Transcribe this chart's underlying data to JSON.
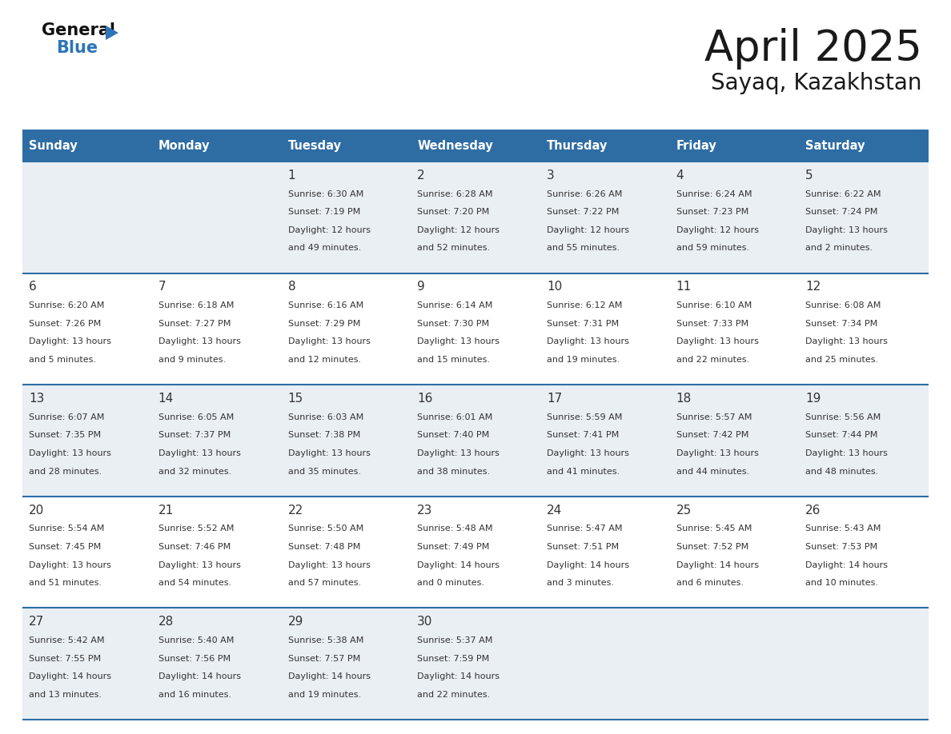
{
  "title": "April 2025",
  "subtitle": "Sayaq, Kazakhstan",
  "header_bg_color": "#2E6DA4",
  "header_text_color": "#FFFFFF",
  "weekdays": [
    "Sunday",
    "Monday",
    "Tuesday",
    "Wednesday",
    "Thursday",
    "Friday",
    "Saturday"
  ],
  "cell_bg_even": "#EAEFF4",
  "cell_bg_odd": "#FFFFFF",
  "row_line_color": "#2E6DA4",
  "text_color": "#333333",
  "title_color": "#1a1a1a",
  "days": [
    {
      "day": null,
      "col": 0,
      "row": 0,
      "sunrise": null,
      "sunset": null,
      "daylight": null
    },
    {
      "day": null,
      "col": 1,
      "row": 0,
      "sunrise": null,
      "sunset": null,
      "daylight": null
    },
    {
      "day": 1,
      "col": 2,
      "row": 0,
      "sunrise": "6:30 AM",
      "sunset": "7:19 PM",
      "daylight": "12 hours and 49 minutes."
    },
    {
      "day": 2,
      "col": 3,
      "row": 0,
      "sunrise": "6:28 AM",
      "sunset": "7:20 PM",
      "daylight": "12 hours and 52 minutes."
    },
    {
      "day": 3,
      "col": 4,
      "row": 0,
      "sunrise": "6:26 AM",
      "sunset": "7:22 PM",
      "daylight": "12 hours and 55 minutes."
    },
    {
      "day": 4,
      "col": 5,
      "row": 0,
      "sunrise": "6:24 AM",
      "sunset": "7:23 PM",
      "daylight": "12 hours and 59 minutes."
    },
    {
      "day": 5,
      "col": 6,
      "row": 0,
      "sunrise": "6:22 AM",
      "sunset": "7:24 PM",
      "daylight": "13 hours and 2 minutes."
    },
    {
      "day": 6,
      "col": 0,
      "row": 1,
      "sunrise": "6:20 AM",
      "sunset": "7:26 PM",
      "daylight": "13 hours and 5 minutes."
    },
    {
      "day": 7,
      "col": 1,
      "row": 1,
      "sunrise": "6:18 AM",
      "sunset": "7:27 PM",
      "daylight": "13 hours and 9 minutes."
    },
    {
      "day": 8,
      "col": 2,
      "row": 1,
      "sunrise": "6:16 AM",
      "sunset": "7:29 PM",
      "daylight": "13 hours and 12 minutes."
    },
    {
      "day": 9,
      "col": 3,
      "row": 1,
      "sunrise": "6:14 AM",
      "sunset": "7:30 PM",
      "daylight": "13 hours and 15 minutes."
    },
    {
      "day": 10,
      "col": 4,
      "row": 1,
      "sunrise": "6:12 AM",
      "sunset": "7:31 PM",
      "daylight": "13 hours and 19 minutes."
    },
    {
      "day": 11,
      "col": 5,
      "row": 1,
      "sunrise": "6:10 AM",
      "sunset": "7:33 PM",
      "daylight": "13 hours and 22 minutes."
    },
    {
      "day": 12,
      "col": 6,
      "row": 1,
      "sunrise": "6:08 AM",
      "sunset": "7:34 PM",
      "daylight": "13 hours and 25 minutes."
    },
    {
      "day": 13,
      "col": 0,
      "row": 2,
      "sunrise": "6:07 AM",
      "sunset": "7:35 PM",
      "daylight": "13 hours and 28 minutes."
    },
    {
      "day": 14,
      "col": 1,
      "row": 2,
      "sunrise": "6:05 AM",
      "sunset": "7:37 PM",
      "daylight": "13 hours and 32 minutes."
    },
    {
      "day": 15,
      "col": 2,
      "row": 2,
      "sunrise": "6:03 AM",
      "sunset": "7:38 PM",
      "daylight": "13 hours and 35 minutes."
    },
    {
      "day": 16,
      "col": 3,
      "row": 2,
      "sunrise": "6:01 AM",
      "sunset": "7:40 PM",
      "daylight": "13 hours and 38 minutes."
    },
    {
      "day": 17,
      "col": 4,
      "row": 2,
      "sunrise": "5:59 AM",
      "sunset": "7:41 PM",
      "daylight": "13 hours and 41 minutes."
    },
    {
      "day": 18,
      "col": 5,
      "row": 2,
      "sunrise": "5:57 AM",
      "sunset": "7:42 PM",
      "daylight": "13 hours and 44 minutes."
    },
    {
      "day": 19,
      "col": 6,
      "row": 2,
      "sunrise": "5:56 AM",
      "sunset": "7:44 PM",
      "daylight": "13 hours and 48 minutes."
    },
    {
      "day": 20,
      "col": 0,
      "row": 3,
      "sunrise": "5:54 AM",
      "sunset": "7:45 PM",
      "daylight": "13 hours and 51 minutes."
    },
    {
      "day": 21,
      "col": 1,
      "row": 3,
      "sunrise": "5:52 AM",
      "sunset": "7:46 PM",
      "daylight": "13 hours and 54 minutes."
    },
    {
      "day": 22,
      "col": 2,
      "row": 3,
      "sunrise": "5:50 AM",
      "sunset": "7:48 PM",
      "daylight": "13 hours and 57 minutes."
    },
    {
      "day": 23,
      "col": 3,
      "row": 3,
      "sunrise": "5:48 AM",
      "sunset": "7:49 PM",
      "daylight": "14 hours and 0 minutes."
    },
    {
      "day": 24,
      "col": 4,
      "row": 3,
      "sunrise": "5:47 AM",
      "sunset": "7:51 PM",
      "daylight": "14 hours and 3 minutes."
    },
    {
      "day": 25,
      "col": 5,
      "row": 3,
      "sunrise": "5:45 AM",
      "sunset": "7:52 PM",
      "daylight": "14 hours and 6 minutes."
    },
    {
      "day": 26,
      "col": 6,
      "row": 3,
      "sunrise": "5:43 AM",
      "sunset": "7:53 PM",
      "daylight": "14 hours and 10 minutes."
    },
    {
      "day": 27,
      "col": 0,
      "row": 4,
      "sunrise": "5:42 AM",
      "sunset": "7:55 PM",
      "daylight": "14 hours and 13 minutes."
    },
    {
      "day": 28,
      "col": 1,
      "row": 4,
      "sunrise": "5:40 AM",
      "sunset": "7:56 PM",
      "daylight": "14 hours and 16 minutes."
    },
    {
      "day": 29,
      "col": 2,
      "row": 4,
      "sunrise": "5:38 AM",
      "sunset": "7:57 PM",
      "daylight": "14 hours and 19 minutes."
    },
    {
      "day": 30,
      "col": 3,
      "row": 4,
      "sunrise": "5:37 AM",
      "sunset": "7:59 PM",
      "daylight": "14 hours and 22 minutes."
    },
    {
      "day": null,
      "col": 4,
      "row": 4,
      "sunrise": null,
      "sunset": null,
      "daylight": null
    },
    {
      "day": null,
      "col": 5,
      "row": 4,
      "sunrise": null,
      "sunset": null,
      "daylight": null
    },
    {
      "day": null,
      "col": 6,
      "row": 4,
      "sunrise": null,
      "sunset": null,
      "daylight": null
    }
  ],
  "logo_triangle_color": "#2E75B6",
  "logo_general_color": "#111111",
  "logo_blue_color": "#2E75B6",
  "fig_width": 11.88,
  "fig_height": 9.18,
  "dpi": 100
}
